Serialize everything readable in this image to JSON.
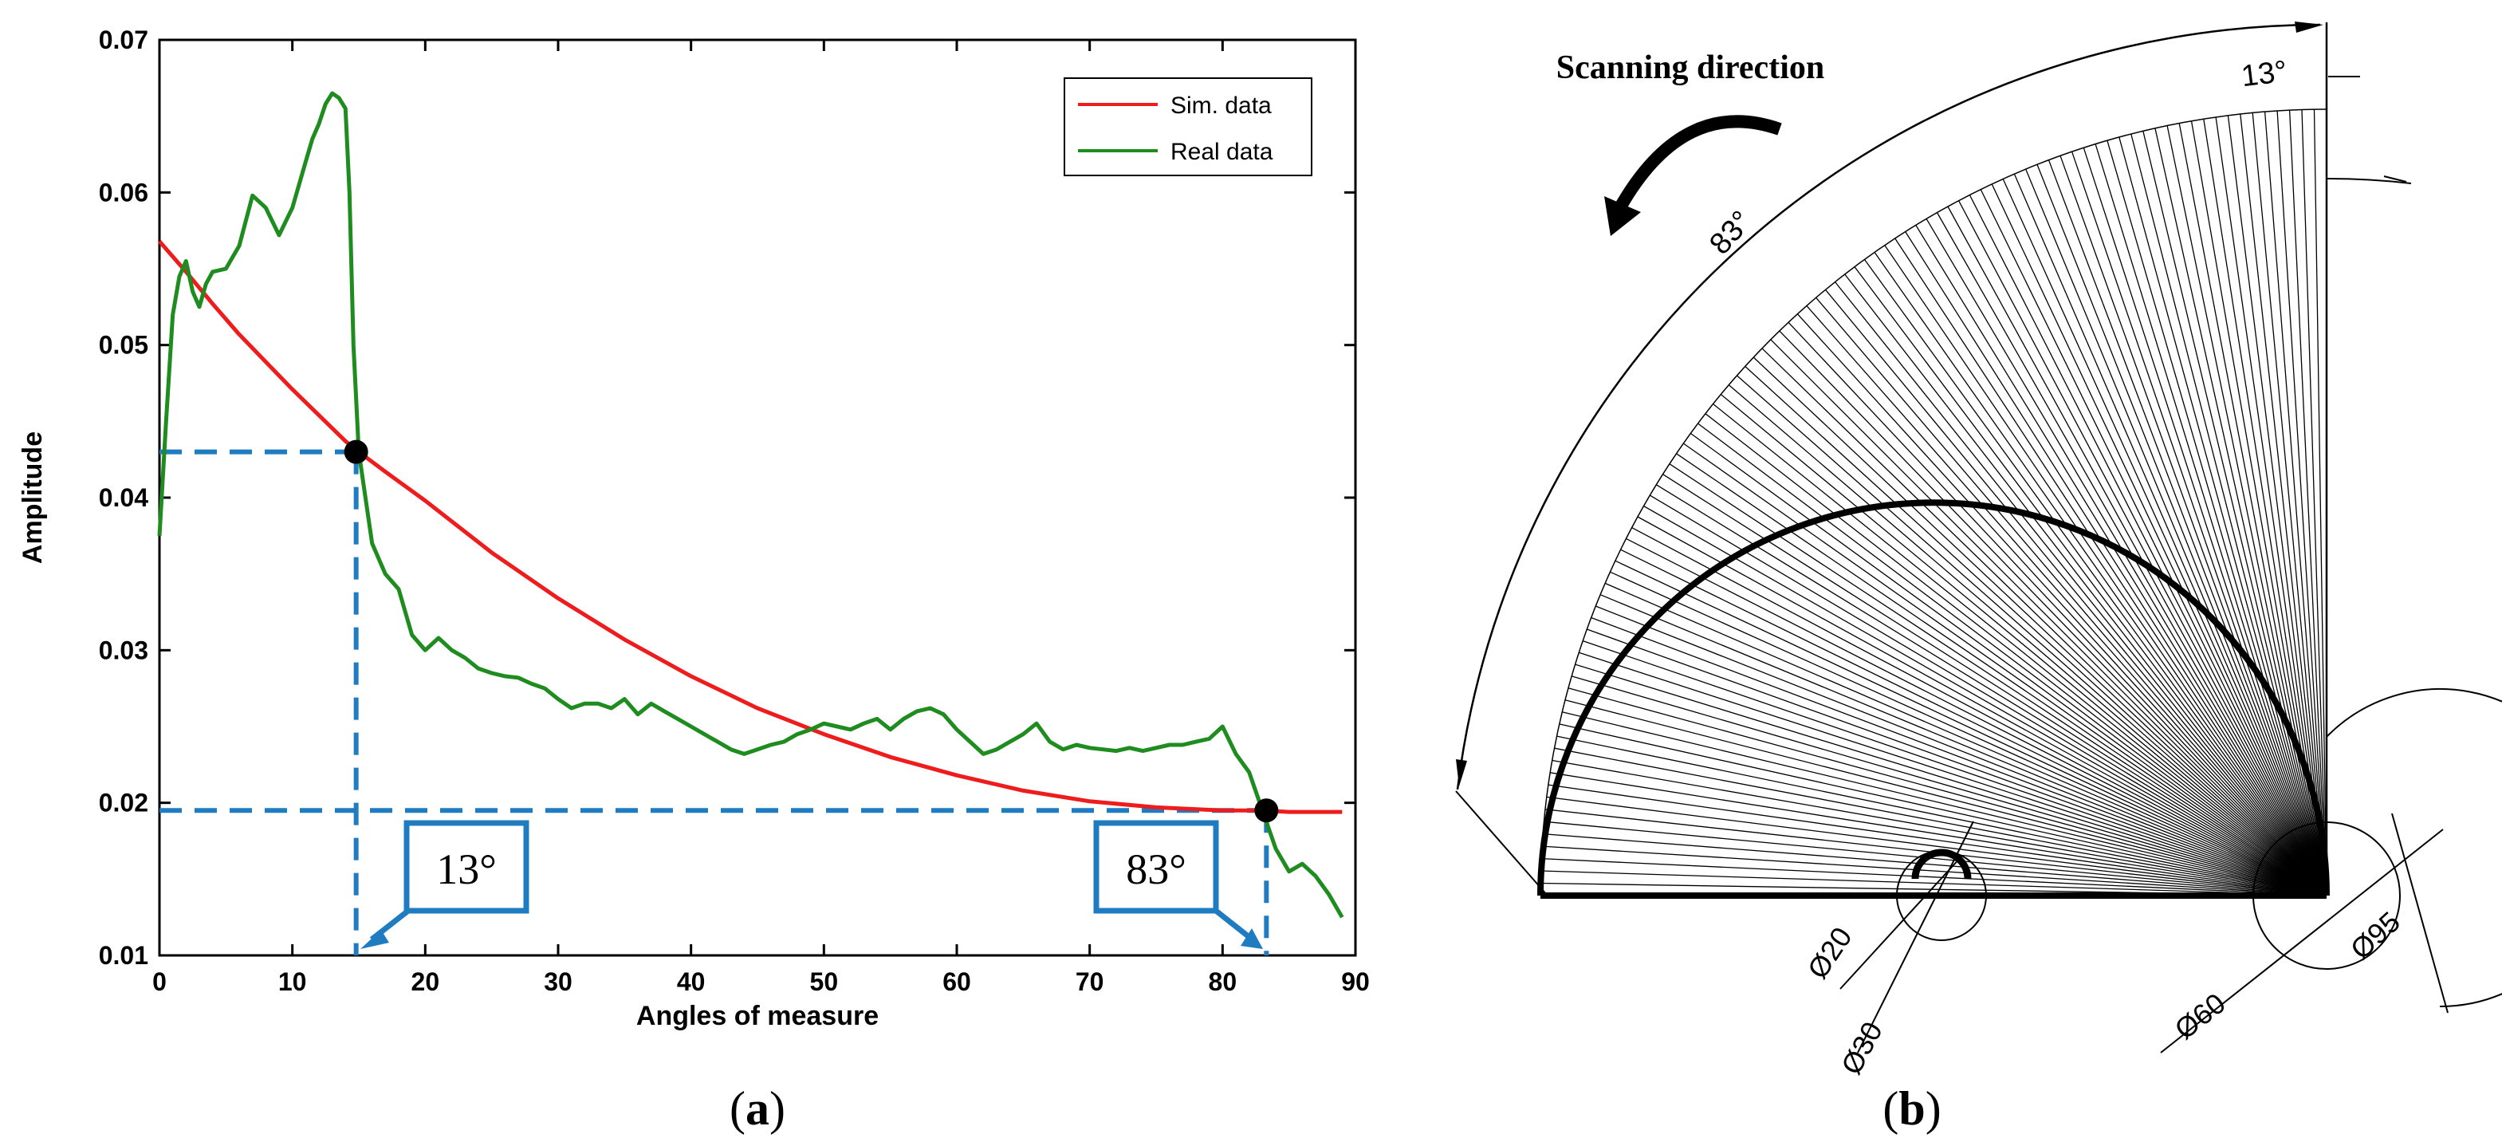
{
  "chart_data": {
    "type": "line",
    "title": "",
    "xlabel": "Angles of measure",
    "ylabel": "Amplitude",
    "xlim": [
      0,
      90
    ],
    "ylim": [
      0.01,
      0.07
    ],
    "xticks": [
      0,
      10,
      20,
      30,
      40,
      50,
      60,
      70,
      80,
      90
    ],
    "yticks": [
      0.01,
      0.02,
      0.03,
      0.04,
      0.05,
      0.06,
      0.07
    ],
    "xtick_labels": [
      "0",
      "10",
      "20",
      "30",
      "40",
      "50",
      "60",
      "70",
      "80",
      "90"
    ],
    "ytick_labels": [
      "0.01",
      "0.02",
      "0.03",
      "0.04",
      "0.05",
      "0.06",
      "0.07"
    ],
    "legend_position": "top-right",
    "series": [
      {
        "name": "Sim. data",
        "color": "#ee1c1c",
        "x": [
          0,
          2,
          4,
          6,
          8,
          10,
          12,
          14,
          15,
          17,
          20,
          25,
          30,
          35,
          40,
          45,
          50,
          55,
          60,
          65,
          70,
          75,
          80,
          83,
          85,
          89
        ],
        "y": [
          0.0568,
          0.0548,
          0.0527,
          0.0507,
          0.0489,
          0.0471,
          0.0454,
          0.0437,
          0.043,
          0.0417,
          0.0398,
          0.0364,
          0.0334,
          0.0307,
          0.0283,
          0.0262,
          0.0245,
          0.023,
          0.0218,
          0.0208,
          0.0201,
          0.0197,
          0.0195,
          0.0195,
          0.0194,
          0.0194
        ]
      },
      {
        "name": "Real data",
        "color": "#1e8c1e",
        "x": [
          0,
          0.5,
          1,
          1.5,
          2,
          2.5,
          3,
          3.5,
          4,
          5,
          6,
          7,
          8,
          9,
          10,
          11,
          11.5,
          12,
          12.5,
          13,
          13.5,
          14,
          14.3,
          14.6,
          15,
          16,
          17,
          18,
          19,
          20,
          21,
          22,
          23,
          24,
          25,
          26,
          27,
          28,
          29,
          30,
          31,
          32,
          33,
          34,
          35,
          36,
          37,
          38,
          39,
          40,
          41,
          42,
          43,
          44,
          45,
          46,
          47,
          48,
          49,
          50,
          51,
          52,
          53,
          54,
          55,
          56,
          57,
          58,
          59,
          60,
          61,
          62,
          63,
          64,
          65,
          66,
          67,
          68,
          69,
          70,
          71,
          72,
          73,
          74,
          75,
          76,
          77,
          78,
          79,
          80,
          81,
          82,
          83,
          84,
          85,
          86,
          87,
          88,
          89
        ],
        "y": [
          0.0375,
          0.045,
          0.052,
          0.0545,
          0.0555,
          0.0535,
          0.0525,
          0.054,
          0.0548,
          0.055,
          0.0565,
          0.0598,
          0.059,
          0.0572,
          0.059,
          0.062,
          0.0635,
          0.0645,
          0.0658,
          0.0665,
          0.0662,
          0.0655,
          0.06,
          0.05,
          0.043,
          0.037,
          0.035,
          0.034,
          0.031,
          0.03,
          0.0308,
          0.03,
          0.0295,
          0.0288,
          0.0285,
          0.0283,
          0.0282,
          0.0278,
          0.0275,
          0.0268,
          0.0262,
          0.0265,
          0.0265,
          0.0262,
          0.0268,
          0.0258,
          0.0265,
          0.026,
          0.0255,
          0.025,
          0.0245,
          0.024,
          0.0235,
          0.0232,
          0.0235,
          0.0238,
          0.024,
          0.0245,
          0.0248,
          0.0252,
          0.025,
          0.0248,
          0.0252,
          0.0255,
          0.0248,
          0.0255,
          0.026,
          0.0262,
          0.0258,
          0.0248,
          0.024,
          0.0232,
          0.0235,
          0.024,
          0.0245,
          0.0252,
          0.024,
          0.0235,
          0.0238,
          0.0236,
          0.0235,
          0.0234,
          0.0236,
          0.0234,
          0.0236,
          0.0238,
          0.0238,
          0.024,
          0.0242,
          0.025,
          0.0232,
          0.022,
          0.0195,
          0.017,
          0.0155,
          0.016,
          0.0152,
          0.014,
          0.0125
        ]
      }
    ],
    "markers": [
      {
        "x": 14.8,
        "y": 0.043,
        "label": "13°"
      },
      {
        "x": 83.3,
        "y": 0.0195,
        "label": "83°"
      }
    ]
  },
  "panel_a": {
    "caption_open": "(",
    "caption_letter": "a",
    "caption_close": ")"
  },
  "panel_b": {
    "caption_open": "(",
    "caption_letter": "b",
    "caption_close": ")",
    "title": "Scanning direction",
    "angle_outer": "83°",
    "angle_inner": "13°",
    "dims": {
      "d20": "Ø20",
      "d30": "Ø30",
      "d60": "Ø60",
      "d95": "Ø95"
    },
    "scan_start_deg": 13,
    "scan_end_deg": 83
  },
  "colors": {
    "sim": "#ee1c1c",
    "real": "#1e8c1e",
    "guide": "#1f7cc1",
    "ink": "#000000"
  }
}
